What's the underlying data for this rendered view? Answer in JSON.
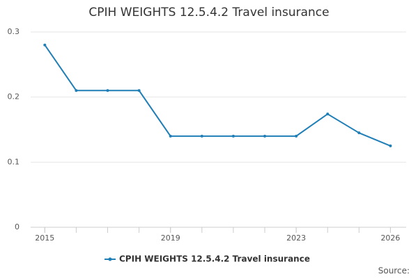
{
  "chart_data": {
    "type": "line",
    "title": "CPIH WEIGHTS 12.5.4.2 Travel insurance",
    "x": [
      2015,
      2016,
      2017,
      2018,
      2019,
      2020,
      2021,
      2022,
      2023,
      2024,
      2025,
      2026
    ],
    "series": [
      {
        "name": "CPIH WEIGHTS 12.5.4.2 Travel insurance",
        "color": "#1f7fb6",
        "values": [
          0.28,
          0.21,
          0.21,
          0.21,
          0.14,
          0.14,
          0.14,
          0.14,
          0.14,
          0.174,
          0.145,
          0.125
        ]
      }
    ],
    "xlim": [
      2014.55,
      2026.5
    ],
    "xticks": [
      2015,
      2019,
      2023,
      2026
    ],
    "ylim": [
      0,
      0.3
    ],
    "yticks": [
      0,
      0.1,
      0.2,
      0.3
    ],
    "grid": true,
    "source": "Source:"
  }
}
